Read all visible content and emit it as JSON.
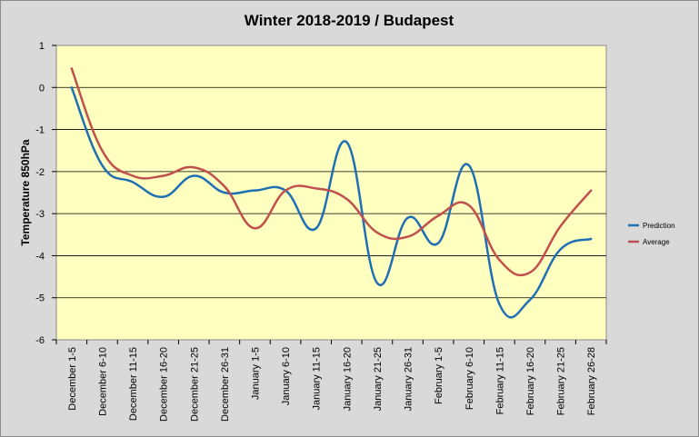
{
  "chart_data": {
    "type": "line",
    "title": "Winter 2018-2019 / Budapest",
    "xlabel": "",
    "ylabel": "Temperature 850hPa",
    "ylim": [
      -6,
      1
    ],
    "yticks": [
      1,
      0,
      -1,
      -2,
      -3,
      -4,
      -5,
      -6
    ],
    "grid": true,
    "legend": "right",
    "categories": [
      "December 1-5",
      "December 6-10",
      "December 11-15",
      "December 16-20",
      "December 21-25",
      "December 26-31",
      "January 1-5",
      "January 6-10",
      "January 11-15",
      "January 16-20",
      "January 21-25",
      "January 26-31",
      "February 1-5",
      "February 6-10",
      "February 11-15",
      "February 16-20",
      "February 21-25",
      "February 26-28"
    ],
    "series": [
      {
        "name": "Prediction",
        "color": "#1f6fb5",
        "values": [
          0.0,
          -1.85,
          -2.25,
          -2.6,
          -2.1,
          -2.5,
          -2.45,
          -2.45,
          -3.35,
          -1.3,
          -4.65,
          -3.1,
          -3.7,
          -1.85,
          -5.15,
          -5.05,
          -3.85,
          -3.6
        ]
      },
      {
        "name": "Average",
        "color": "#c0504d",
        "values": [
          0.45,
          -1.5,
          -2.1,
          -2.1,
          -1.9,
          -2.35,
          -3.35,
          -2.45,
          -2.4,
          -2.65,
          -3.45,
          -3.55,
          -3.05,
          -2.8,
          -4.1,
          -4.4,
          -3.3,
          -2.45
        ]
      }
    ]
  }
}
